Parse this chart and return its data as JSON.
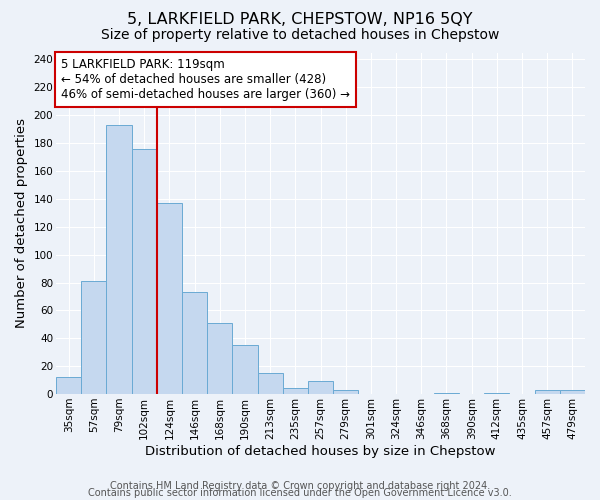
{
  "title": "5, LARKFIELD PARK, CHEPSTOW, NP16 5QY",
  "subtitle": "Size of property relative to detached houses in Chepstow",
  "xlabel": "Distribution of detached houses by size in Chepstow",
  "ylabel": "Number of detached properties",
  "bar_labels": [
    "35sqm",
    "57sqm",
    "79sqm",
    "102sqm",
    "124sqm",
    "146sqm",
    "168sqm",
    "190sqm",
    "213sqm",
    "235sqm",
    "257sqm",
    "279sqm",
    "301sqm",
    "324sqm",
    "346sqm",
    "368sqm",
    "390sqm",
    "412sqm",
    "435sqm",
    "457sqm",
    "479sqm"
  ],
  "bar_values": [
    12,
    81,
    193,
    176,
    137,
    73,
    51,
    35,
    15,
    4,
    9,
    3,
    0,
    0,
    0,
    1,
    0,
    1,
    0,
    3,
    3
  ],
  "bar_color": "#c5d8ef",
  "bar_edgecolor": "#6aaad4",
  "vline_x_index": 3,
  "vline_color": "#cc0000",
  "annotation_line1": "5 LARKFIELD PARK: 119sqm",
  "annotation_line2": "← 54% of detached houses are smaller (428)",
  "annotation_line3": "46% of semi-detached houses are larger (360) →",
  "annotation_box_edgecolor": "#cc0000",
  "ylim": [
    0,
    245
  ],
  "yticks": [
    0,
    20,
    40,
    60,
    80,
    100,
    120,
    140,
    160,
    180,
    200,
    220,
    240
  ],
  "footer_line1": "Contains HM Land Registry data © Crown copyright and database right 2024.",
  "footer_line2": "Contains public sector information licensed under the Open Government Licence v3.0.",
  "bg_color": "#edf2f9",
  "plot_bg_color": "#edf2f9",
  "title_fontsize": 11.5,
  "subtitle_fontsize": 10,
  "axis_label_fontsize": 9.5,
  "tick_fontsize": 7.5,
  "annotation_fontsize": 8.5,
  "footer_fontsize": 7
}
